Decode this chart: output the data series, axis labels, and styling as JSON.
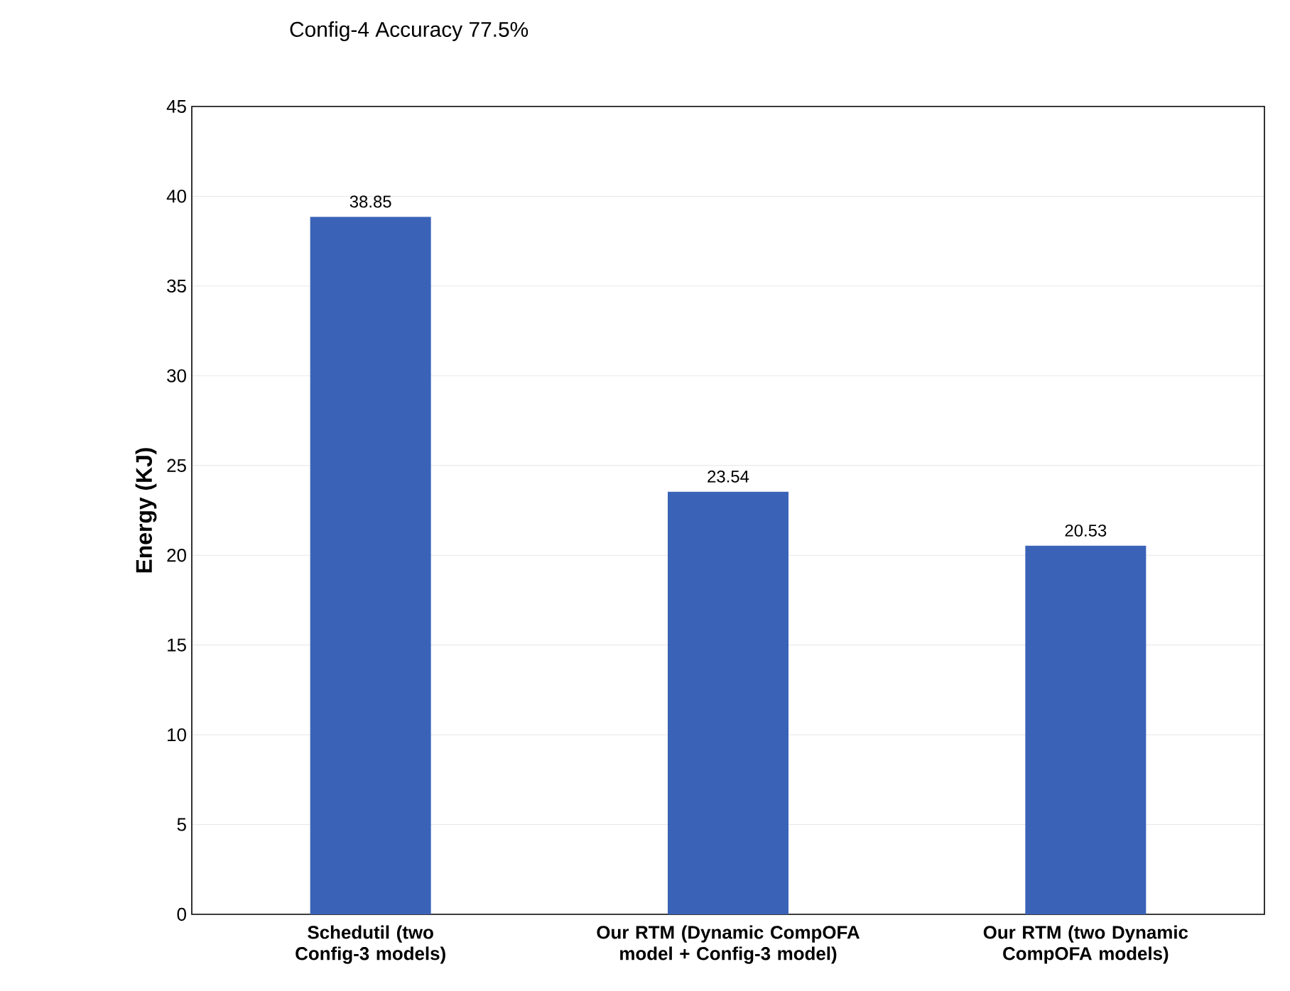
{
  "chart_data": {
    "type": "bar",
    "ylabel": "Energy (KJ)",
    "categories": [
      "Schedutil (two Config-3 models)",
      "Our RTM (Dynamic CompOFA model + Config-3 model)",
      "Our RTM (two Dynamic CompOFA models)"
    ],
    "values": [
      38.85,
      23.54,
      20.53
    ],
    "color": "#3a63b8",
    "data_labels": true,
    "ylim": [
      0,
      45
    ],
    "yticks": [
      0,
      5,
      10,
      15,
      20,
      25,
      30,
      35,
      40,
      45
    ],
    "grid": "y",
    "annotations": [
      "Config-4 Accuracy 77.5%"
    ]
  }
}
